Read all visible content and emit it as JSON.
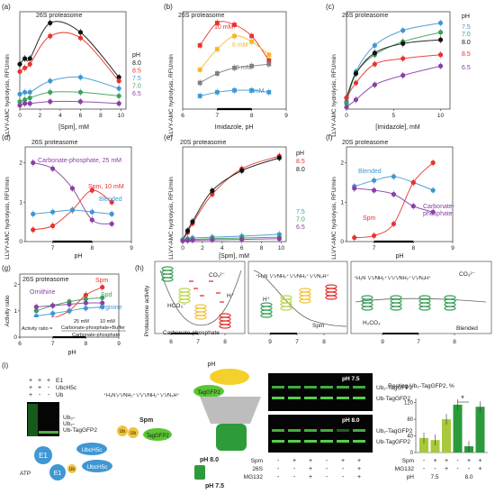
{
  "colors": {
    "black": "#111111",
    "red": "#e8332e",
    "blue": "#3f97d3",
    "green": "#3aa15a",
    "purple": "#8a3fa6",
    "orange": "#f0762a",
    "yellow": "#f4b82b",
    "gray_dark": "#7f7f7f",
    "gray_light": "#b9b9b9",
    "lime": "#8dc63f",
    "dkgreen": "#2c9a3c"
  },
  "chart_data": [
    {
      "panel": "(a)",
      "type": "line",
      "title": "26S proteasome",
      "xlabel": "[Spm], mM",
      "ylabel": "LLVY-AMC hydrolysis, RFU/min",
      "xticks": [
        "0",
        "2",
        "4",
        "6",
        "8",
        "10"
      ],
      "xlim": [
        0,
        10.5
      ],
      "ylim": [
        0,
        2.6
      ],
      "legend_title": "pH",
      "series": [
        {
          "name": "8.0",
          "color": "#111111",
          "x": [
            0,
            0.5,
            1,
            3,
            6,
            9.8
          ],
          "y": [
            1.2,
            1.35,
            1.35,
            2.3,
            2.05,
            0.85
          ]
        },
        {
          "name": "8.5",
          "color": "#e8332e",
          "x": [
            0,
            0.5,
            1,
            3,
            6,
            9.8
          ],
          "y": [
            1.0,
            1.1,
            1.2,
            1.95,
            1.9,
            0.75
          ]
        },
        {
          "name": "7.5",
          "color": "#3f97d3",
          "x": [
            0,
            0.5,
            1,
            3,
            6,
            9.8
          ],
          "y": [
            0.4,
            0.45,
            0.45,
            0.75,
            0.85,
            0.55
          ]
        },
        {
          "name": "7.0",
          "color": "#3aa15a",
          "x": [
            0,
            0.5,
            1,
            3,
            6,
            9.8
          ],
          "y": [
            0.2,
            0.25,
            0.3,
            0.45,
            0.45,
            0.35
          ]
        },
        {
          "name": "6.5",
          "color": "#8a3fa6",
          "x": [
            0,
            0.5,
            1,
            3,
            6,
            9.8
          ],
          "y": [
            0.1,
            0.15,
            0.15,
            0.2,
            0.2,
            0.15
          ]
        }
      ]
    },
    {
      "panel": "(b)",
      "type": "line",
      "title": "26S proteasome",
      "xlabel": "Imidazole, pH",
      "ylabel": "LLVY-AMC hydrolysis, RFU/min",
      "xticks": [
        "6",
        "7",
        "8",
        "9"
      ],
      "xlim": [
        6,
        9
      ],
      "ylim": [
        0,
        2.6
      ],
      "series": [
        {
          "name": "10 mM",
          "color": "#e8332e",
          "x": [
            6.5,
            7,
            7.5,
            8,
            8.5
          ],
          "y": [
            1.7,
            2.3,
            2.25,
            1.95,
            1.3
          ]
        },
        {
          "name": "6 mM",
          "color": "#f4b82b",
          "x": [
            6.5,
            7,
            7.5,
            8,
            8.5
          ],
          "y": [
            1.05,
            1.6,
            1.95,
            1.8,
            1.45
          ]
        },
        {
          "name": "3 mM",
          "color": "#7f7f7f",
          "x": [
            6.5,
            7,
            7.5,
            8,
            8.5
          ],
          "y": [
            0.7,
            0.95,
            1.1,
            1.15,
            1.2
          ]
        },
        {
          "name": "1 mM",
          "color": "#3f97d3",
          "x": [
            6.5,
            7,
            7.5,
            8,
            8.5
          ],
          "y": [
            0.35,
            0.45,
            0.5,
            0.5,
            0.45
          ]
        }
      ]
    },
    {
      "panel": "(c)",
      "type": "line",
      "title": "26S proteasome",
      "xlabel": "[Imidazole], mM",
      "ylabel": "LLVY-AMC hydrolysis, RFU/min",
      "xticks": [
        "0",
        "5",
        "10"
      ],
      "xlim": [
        0,
        11
      ],
      "ylim": [
        0,
        2.6
      ],
      "legend_title": "pH",
      "series": [
        {
          "name": "7.5",
          "color": "#3f97d3",
          "x": [
            0,
            1,
            3,
            6,
            10
          ],
          "y": [
            0.2,
            1.0,
            1.7,
            2.1,
            2.3
          ]
        },
        {
          "name": "7.0",
          "color": "#3aa15a",
          "x": [
            0,
            1,
            3,
            6,
            10
          ],
          "y": [
            0.15,
            0.95,
            1.45,
            1.8,
            2.05
          ]
        },
        {
          "name": "8.0",
          "color": "#111111",
          "x": [
            0,
            1,
            3,
            6,
            10
          ],
          "y": [
            0.3,
            0.95,
            1.5,
            1.75,
            1.85
          ]
        },
        {
          "name": "8.5",
          "color": "#e8332e",
          "x": [
            0,
            1,
            3,
            6,
            10
          ],
          "y": [
            0.3,
            0.7,
            1.2,
            1.35,
            1.45
          ]
        },
        {
          "name": "6.5",
          "color": "#8a3fa6",
          "x": [
            0,
            1,
            3,
            6,
            10
          ],
          "y": [
            0.05,
            0.25,
            0.65,
            0.9,
            1.15
          ]
        }
      ]
    },
    {
      "panel": "(d)",
      "type": "line",
      "title": "26S proteasome",
      "xlabel": "pH",
      "ylabel": "LLVY-AMC hydrolysis, RFU/min",
      "xticks": [
        "7",
        "8",
        "9"
      ],
      "xlim": [
        6.3,
        9
      ],
      "ylim": [
        0,
        2.4
      ],
      "yticks": [
        "0",
        "1",
        "2"
      ],
      "series": [
        {
          "name": "Carbonate-phosphate, 25 mM",
          "color": "#8a3fa6",
          "x": [
            6.5,
            7,
            7.5,
            8,
            8.5
          ],
          "y": [
            2.0,
            1.85,
            1.35,
            0.55,
            0.45
          ]
        },
        {
          "name": "Spm, 10 mM",
          "color": "#e8332e",
          "x": [
            6.5,
            7,
            7.5,
            8,
            8.5
          ],
          "y": [
            0.3,
            0.4,
            0.8,
            1.3,
            1.0
          ]
        },
        {
          "name": "Blended",
          "color": "#3f97d3",
          "x": [
            6.5,
            7,
            7.5,
            8,
            8.5
          ],
          "y": [
            0.7,
            0.75,
            0.8,
            0.75,
            0.7
          ]
        }
      ]
    },
    {
      "panel": "(e)",
      "type": "line",
      "title": "20S proteasome",
      "xlabel": "[Spm], mM",
      "ylabel": "LLVY-AMC hydrolysis, RFU/min",
      "xticks": [
        "0",
        "2",
        "4",
        "6",
        "8",
        "10"
      ],
      "xlim": [
        0,
        10.5
      ],
      "ylim": [
        0,
        2.6
      ],
      "legend_title": "pH",
      "series": [
        {
          "name": "8.5",
          "color": "#e8332e",
          "x": [
            0,
            0.5,
            1,
            3,
            6,
            9.8
          ],
          "y": [
            0.05,
            0.25,
            0.5,
            1.3,
            2.0,
            2.35
          ]
        },
        {
          "name": "8.0",
          "color": "#111111",
          "x": [
            0,
            0.5,
            1,
            3,
            6,
            9.8
          ],
          "y": [
            0.05,
            0.3,
            0.55,
            1.4,
            1.95,
            2.3
          ]
        },
        {
          "name": "7.5",
          "color": "#3f97d3",
          "x": [
            0,
            0.5,
            1,
            3,
            6,
            9.8
          ],
          "y": [
            0.05,
            0.08,
            0.1,
            0.12,
            0.15,
            0.2
          ]
        },
        {
          "name": "7.0",
          "color": "#3aa15a",
          "x": [
            0,
            0.5,
            1,
            3,
            6,
            9.8
          ],
          "y": [
            0.03,
            0.05,
            0.06,
            0.08,
            0.1,
            0.12
          ]
        },
        {
          "name": "6.5",
          "color": "#8a3fa6",
          "x": [
            0,
            0.5,
            1,
            3,
            6,
            9.8
          ],
          "y": [
            0.02,
            0.03,
            0.04,
            0.05,
            0.06,
            0.08
          ]
        }
      ]
    },
    {
      "panel": "(f)",
      "type": "line",
      "title": "20S proteasome",
      "xlabel": "pH",
      "ylabel": "LLVY-AMC hydrolysis, RFU/min",
      "xticks": [
        "7",
        "8",
        "9"
      ],
      "xlim": [
        6.3,
        9
      ],
      "ylim": [
        0,
        2.4
      ],
      "yticks": [
        "0",
        "1",
        "2"
      ],
      "series": [
        {
          "name": "Blended",
          "color": "#3f97d3",
          "x": [
            6.5,
            7,
            7.5,
            8,
            8.5
          ],
          "y": [
            1.4,
            1.55,
            1.65,
            1.5,
            1.3
          ]
        },
        {
          "name": "Spm",
          "color": "#e8332e",
          "x": [
            6.5,
            7,
            7.5,
            8,
            8.5
          ],
          "y": [
            0.1,
            0.15,
            0.45,
            1.5,
            2.0
          ]
        },
        {
          "name": "Carbonate-phosphate",
          "color": "#8a3fa6",
          "x": [
            6.5,
            7,
            7.5,
            8,
            8.5
          ],
          "y": [
            1.35,
            1.3,
            1.2,
            0.9,
            0.75
          ]
        }
      ]
    },
    {
      "panel": "(g)",
      "type": "line",
      "title": "26S proteasome",
      "xlabel": "pH",
      "ylabel": "Activity ratio",
      "xticks": [
        "6",
        "7",
        "8",
        "9"
      ],
      "xlim": [
        6,
        9
      ],
      "ylim": [
        0,
        2.4
      ],
      "yticks": [
        "0",
        "1",
        "2"
      ],
      "series": [
        {
          "name": "Spm",
          "color": "#e8332e",
          "x": [
            6.5,
            7,
            7.5,
            8,
            8.5
          ],
          "y": [
            0.3,
            0.7,
            1.0,
            1.6,
            1.9
          ]
        },
        {
          "name": "Spd",
          "color": "#3aa15a",
          "x": [
            6.5,
            7,
            7.5,
            8,
            8.5
          ],
          "y": [
            1.0,
            1.2,
            1.35,
            1.45,
            1.5
          ]
        },
        {
          "name": "Ornithine",
          "color": "#8a3fa6",
          "x": [
            6.5,
            7,
            7.5,
            8,
            8.5
          ],
          "y": [
            1.15,
            1.2,
            1.25,
            1.3,
            1.3
          ]
        },
        {
          "name": "Arginine",
          "color": "#3f97d3",
          "x": [
            6.5,
            7,
            7.5,
            8,
            8.5
          ],
          "y": [
            0.8,
            0.9,
            1.0,
            1.1,
            1.15
          ]
        }
      ]
    },
    {
      "panel": "(i)",
      "type": "bar",
      "title": "Resting Ub2-TagGFP2, %",
      "categories": [
        "pH 7.5 Spm -",
        "pH 7.5 Spm +",
        "pH 7.5 Spm+MG132",
        "pH 8.0 Spm -",
        "pH 8.0 Spm +",
        "pH 8.0 Spm+MG132"
      ],
      "values": [
        35,
        30,
        80,
        115,
        15,
        110
      ],
      "ylim": [
        0,
        130
      ],
      "yticks": [
        "0",
        "40",
        "80",
        "120"
      ]
    }
  ],
  "panels": {
    "a": {
      "label": "(a)",
      "title": "26S proteasome",
      "ylabel": "LLVY-AMC hydrolysis, RFU/min",
      "xlabel": "[Spm], mM",
      "legend_title": "pH",
      "legend": [
        "8.0",
        "8.5",
        "7.5",
        "7.0",
        "6.5"
      ]
    },
    "b": {
      "label": "(b)",
      "title": "26S proteasome",
      "ylabel": "LLVY-AMC hydrolysis, RFU/min",
      "xlabel": "Imidazole, pH",
      "labels": [
        "10 mM",
        "6 mM",
        "3 mM",
        "1 mM"
      ]
    },
    "c": {
      "label": "(c)",
      "title": "26S proteasome",
      "ylabel": "LLVY-AMC hydrolysis, RFU/min",
      "xlabel": "[Imidazole], mM",
      "legend_title": "pH",
      "legend": [
        "7.5",
        "7.0",
        "8.0",
        "8.5",
        "6.5"
      ]
    },
    "d": {
      "label": "(d)",
      "title": "26S proteasome",
      "ylabel": "LLVY-AMC hydrolysis, RFU/min",
      "xlabel": "pH",
      "labels": [
        "Carbonate-phosphate, 25 mM",
        "Spm, 10 mM",
        "Blended"
      ]
    },
    "e": {
      "label": "(e)",
      "title": "20S proteasome",
      "ylabel": "LLVY-AMC hydrolysis, RFU/min",
      "xlabel": "[Spm], mM",
      "legend_title": "pH",
      "legend_top": [
        "8.5",
        "8.0"
      ],
      "legend_bottom": [
        "7.5",
        "7.0",
        "6.5"
      ]
    },
    "f": {
      "label": "(f)",
      "title": "20S proteasome",
      "ylabel": "LLVY-AMC hydrolysis, RFU/min",
      "xlabel": "pH",
      "labels": [
        "Blended",
        "Spm",
        "Carbonate-",
        "phosphate"
      ]
    },
    "g": {
      "label": "(g)",
      "title": "26S proteasome",
      "ylabel": "Activity ratio",
      "xlabel": "pH",
      "labels": [
        "Spm",
        "Spd",
        "Ornithine",
        "Arginine"
      ],
      "ratio_prefix": "Activity ratio =",
      "ratio_num": "25 mM",
      "ratio_num2": "10 mM",
      "ratio_top": "Carbonate-phosphate+Buffer",
      "ratio_bottom": "Carbonate-phosphate"
    },
    "h": {
      "label": "(h)",
      "ylabel": "Proteasome activity",
      "xlabel": "pH",
      "xticks": [
        "6",
        "7",
        "8",
        "9",
        "7",
        "8",
        "9",
        "7",
        "8",
        "9"
      ],
      "hco3": "HCO₃⁻",
      "co3": "CO₃²⁻",
      "hplus": "H⁺",
      "hplus2": "H⁺",
      "carb": "Carbonate-phosphate",
      "spm": "Spm",
      "blended": "Blended",
      "h2co3": "H₂CO₃",
      "spm_struct1": "⁺H₃N ∖∕∖∕NH₂⁺∖∕∖∕NH₂⁺∖∕∖∕N₃H⁺",
      "spm_struct2": "⁺H₃N ∖∕∖∕NH₂⁺∖∕∖∕∖∕NH₂⁺∖∕∖∕N₃H⁺"
    },
    "i": {
      "label": "(i)",
      "blot_rows": [
        [
          "+",
          "+",
          "+",
          "E1"
        ],
        [
          "+",
          "+",
          "-",
          "UbcH5c"
        ],
        [
          "+",
          "-",
          "-",
          "Ub"
        ]
      ],
      "blot_labels": [
        "Ub₃-",
        "Ub₂-",
        "Ub-TagGFP2"
      ],
      "e1": "E1",
      "ubch5c": "UbcH5c",
      "ub": "Ub",
      "atp": "ATP",
      "taggfp2": "TagGFP2",
      "spm": "Spm",
      "ph80": "pH 8.0",
      "ph75": "pH 7.5",
      "gel_ph75": "pH 7.5",
      "gel_ph80": "pH 8.0",
      "gel_labels": [
        "Ub₂-TagGFP2",
        "Ub-TagGFP2"
      ],
      "gel_rows": [
        [
          "Spm",
          "-",
          "+",
          "+",
          "-",
          "+",
          "+"
        ],
        [
          "26S",
          "-",
          "-",
          "+",
          "-",
          "-",
          "+"
        ],
        [
          "MG132",
          "-",
          "-",
          "+",
          "-",
          "-",
          "+"
        ]
      ],
      "bar_title": "Resting Ub₂-TagGFP2, %",
      "bar_rows": [
        [
          "Spm",
          "-",
          "+",
          "+",
          "-",
          "+",
          "+"
        ],
        [
          "MG132",
          "-",
          "-",
          "+",
          "-",
          "-",
          "+"
        ]
      ],
      "bar_ph": [
        "pH",
        "7.5",
        "8.0"
      ],
      "star": "*",
      "spm_struct": "⁺H₃N∖∕∖∕NH₂⁺∖∕∖∕∖∕NH₂⁺∖∕∖∕N₃H⁺"
    }
  }
}
